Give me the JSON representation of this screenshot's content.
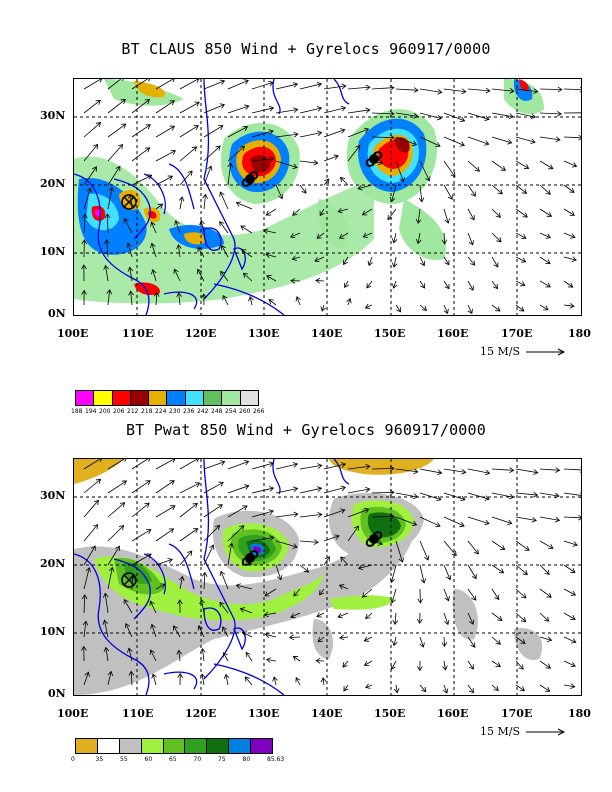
{
  "panels": [
    {
      "title": "BT CLAUS 850 Wind + Gyrelocs 960917/0000",
      "y_labels": [
        "30N",
        "20N",
        "10N",
        "0N"
      ],
      "x_labels": [
        "100E",
        "110E",
        "120E",
        "130E",
        "140E",
        "150E",
        "160E",
        "170E",
        "180"
      ],
      "ref_vector": "15 M/S",
      "colorbar": {
        "colors": [
          "#ff00ff",
          "#ffff00",
          "#ff0000",
          "#990000",
          "#e6b000",
          "#0080ff",
          "#40e0ff",
          "#60c060",
          "#a0e8a0",
          "#e0e0e0"
        ],
        "labels": [
          "188",
          "194",
          "200",
          "206",
          "212",
          "218",
          "224",
          "230",
          "236",
          "242",
          "248",
          "254",
          "260",
          "266"
        ]
      }
    },
    {
      "title": "BT Pwat 850 Wind + Gyrelocs 960917/0000",
      "y_labels": [
        "30N",
        "20N",
        "10N",
        "0N"
      ],
      "x_labels": [
        "100E",
        "110E",
        "120E",
        "130E",
        "140E",
        "150E",
        "160E",
        "170E",
        "180"
      ],
      "ref_vector": "15 M/S",
      "colorbar": {
        "colors": [
          "#e0b020",
          "#ffffff",
          "#c0c0c0",
          "#a0f040",
          "#60c020",
          "#30a020",
          "#107010",
          "#0080e0",
          "#8000c0"
        ],
        "labels": [
          "0",
          "35",
          "55",
          "60",
          "65",
          "70",
          "75",
          "80",
          "85.63"
        ]
      }
    }
  ]
}
